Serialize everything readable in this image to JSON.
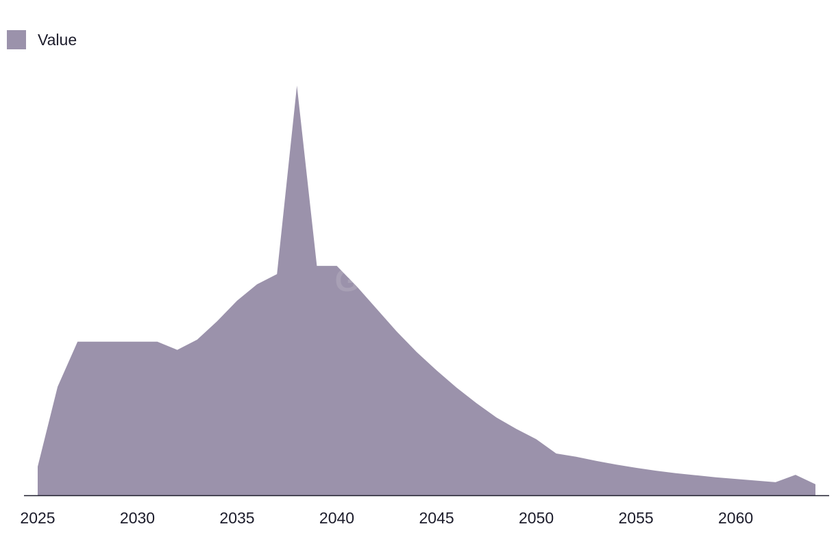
{
  "colors": {
    "area": "#9b92ab",
    "axis": "#1c1c2b",
    "text": "#1c1c2b"
  },
  "watermark": "GlobalData",
  "chart_data": {
    "type": "area",
    "legend": {
      "position": "top-left",
      "entries": [
        "Value"
      ]
    },
    "grid": false,
    "xlim": [
      2025,
      2064
    ],
    "ylim": [
      0,
      100
    ],
    "x_ticks": [
      2025,
      2030,
      2035,
      2040,
      2045,
      2050,
      2055,
      2060
    ],
    "series": [
      {
        "name": "Value",
        "x": [
          2025,
          2026,
          2027,
          2028,
          2029,
          2030,
          2031,
          2032,
          2033,
          2034,
          2035,
          2036,
          2037,
          2038,
          2039,
          2040,
          2041,
          2042,
          2043,
          2044,
          2045,
          2046,
          2047,
          2048,
          2049,
          2050,
          2051,
          2052,
          2053,
          2054,
          2055,
          2056,
          2057,
          2058,
          2059,
          2060,
          2061,
          2062,
          2063,
          2064
        ],
        "values": [
          7,
          26.5,
          37.5,
          37.5,
          37.5,
          37.5,
          37.5,
          35.5,
          38,
          42.5,
          47.5,
          51.5,
          54,
          100,
          56,
          56,
          51,
          45.5,
          40,
          35,
          30.5,
          26.3,
          22.5,
          19,
          16.2,
          13.7,
          10.2,
          9.4,
          8.4,
          7.5,
          6.7,
          6,
          5.4,
          4.9,
          4.4,
          4,
          3.6,
          3.2,
          5,
          2.7
        ]
      }
    ]
  }
}
